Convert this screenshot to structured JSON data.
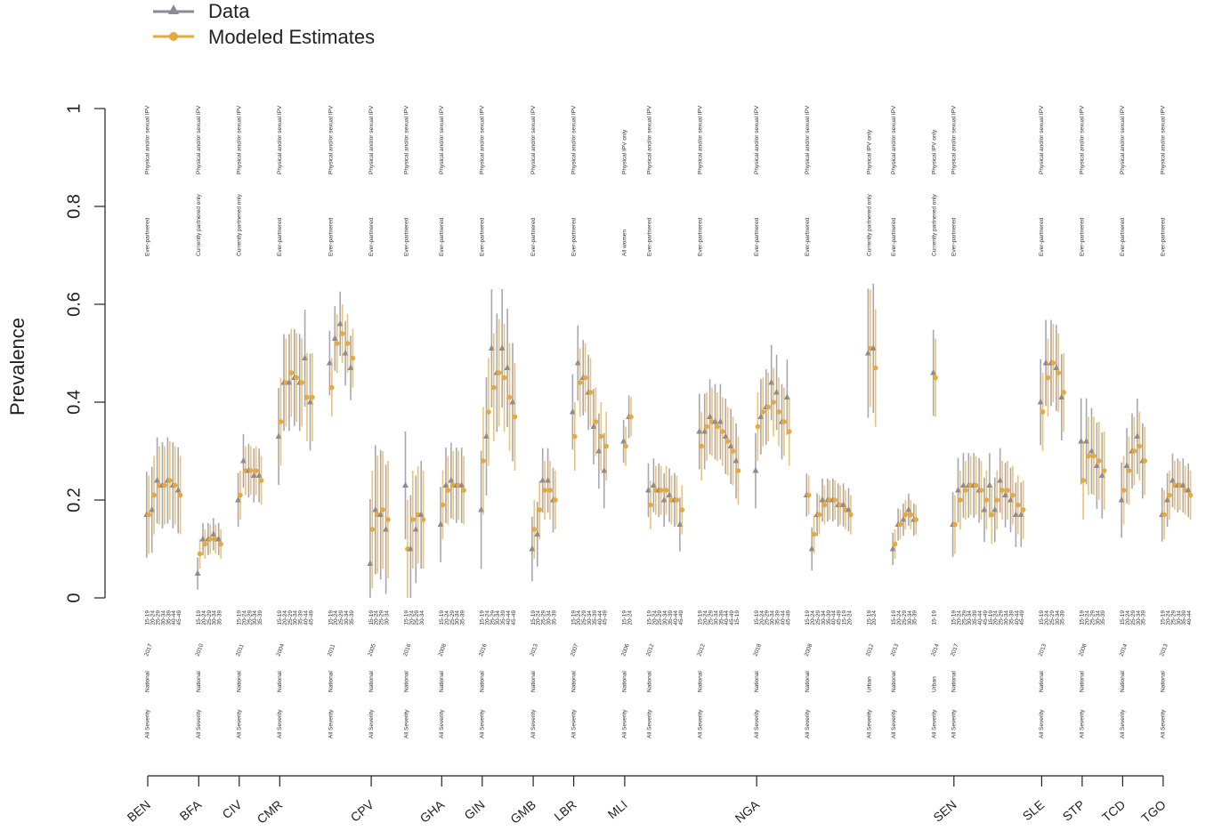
{
  "legend": {
    "items": [
      {
        "label": "Data",
        "color": "#8a8a98",
        "marker": "triangle"
      },
      {
        "label": "Modeled Estimates",
        "color": "#e8a83a",
        "marker": "circle"
      }
    ]
  },
  "colors": {
    "data": "#8a8a98",
    "estimate": "#e8a83a",
    "axis": "#222222"
  },
  "chart_data": {
    "type": "scatter",
    "ylabel": "Prevalence",
    "ylim": [
      0,
      1
    ],
    "y_ticks": [
      "0",
      "0.2",
      "0.4",
      "0.6",
      "0.8",
      "1"
    ],
    "age_groups": [
      "15-19",
      "20-24",
      "25-29",
      "30-34",
      "35-39",
      "40-44",
      "45-49"
    ],
    "surveys": [
      {
        "country": "BEN",
        "year": "2017",
        "sex": "National",
        "severity": "All Severity",
        "partner": "Ever-partnered",
        "ipv": "Physical and/or sexual IPV",
        "data": [
          0.17,
          0.18,
          0.24,
          0.23,
          0.24,
          0.23,
          0.22
        ],
        "est": [
          0.17,
          0.21,
          0.23,
          0.23,
          0.24,
          0.23,
          0.21
        ],
        "err": 0.08
      },
      {
        "country": "BFA",
        "year": "2010",
        "sex": "National",
        "severity": "All Severity",
        "partner": "Currently partnered only",
        "ipv": "Physical and/or sexual IPV",
        "data": [
          0.05,
          0.12,
          0.12,
          0.13,
          0.12
        ],
        "est": [
          0.09,
          0.11,
          0.12,
          0.12,
          0.11
        ],
        "err": 0.03
      },
      {
        "country": "CIV",
        "year": "2011",
        "sex": "National",
        "severity": "All Severity",
        "partner": "Currently partnered only",
        "ipv": "Physical and/or sexual IPV",
        "data": [
          0.2,
          0.28,
          0.26,
          0.25,
          0.25
        ],
        "est": [
          0.21,
          0.26,
          0.26,
          0.26,
          0.24
        ],
        "err": 0.05
      },
      {
        "country": "CMR",
        "year": "2004",
        "sex": "National",
        "severity": "All Severity",
        "partner": "Ever-partnered",
        "ipv": "Physical and/or sexual IPV",
        "data": [
          0.33,
          0.44,
          0.44,
          0.45,
          0.44,
          0.49,
          0.4
        ],
        "est": [
          0.36,
          0.44,
          0.46,
          0.45,
          0.44,
          0.41,
          0.41
        ],
        "err": 0.09
      },
      {
        "country": "CMR",
        "year": "2011",
        "sex": "National",
        "severity": "All Severity",
        "partner": "Ever-partnered",
        "ipv": "Physical and/or sexual IPV",
        "data": [
          0.48,
          0.53,
          0.56,
          0.5,
          0.47
        ],
        "est": [
          0.43,
          0.52,
          0.54,
          0.52,
          0.49
        ],
        "err": 0.06
      },
      {
        "country": "CPV",
        "year": "2005",
        "sex": "National",
        "severity": "All Severity",
        "partner": "Ever-partnered",
        "ipv": "Physical and/or sexual IPV",
        "data": [
          0.07,
          0.18,
          0.17,
          0.14
        ],
        "est": [
          0.14,
          0.17,
          0.18,
          0.16
        ],
        "err": 0.12
      },
      {
        "country": "CPV",
        "year": "2016",
        "sex": "National",
        "severity": "All Severity",
        "partner": "Ever-partnered",
        "ipv": "Physical and/or sexual IPV",
        "data": [
          0.23,
          0.1,
          0.14,
          0.17
        ],
        "est": [
          0.1,
          0.16,
          0.17,
          0.16
        ],
        "err": 0.1
      },
      {
        "country": "GHA",
        "year": "2008",
        "sex": "National",
        "severity": "All Severity",
        "partner": "Ever-partnered",
        "ipv": "Physical and/or sexual IPV",
        "data": [
          0.15,
          0.23,
          0.24,
          0.23,
          0.23
        ],
        "est": [
          0.19,
          0.22,
          0.23,
          0.23,
          0.22
        ],
        "err": 0.07
      },
      {
        "country": "GIN",
        "year": "2016",
        "sex": "National",
        "severity": "All Severity",
        "partner": "Ever-partnered",
        "ipv": "Physical and/or sexual IPV",
        "data": [
          0.18,
          0.33,
          0.51,
          0.46,
          0.51,
          0.47,
          0.4
        ],
        "est": [
          0.28,
          0.38,
          0.43,
          0.46,
          0.45,
          0.41,
          0.37
        ],
        "err": 0.11
      },
      {
        "country": "GMB",
        "year": "2013",
        "sex": "National",
        "severity": "All Severity",
        "partner": "Ever-partnered",
        "ipv": "Physical and/or sexual IPV",
        "data": [
          0.1,
          0.13,
          0.24,
          0.24,
          0.2
        ],
        "est": [
          0.14,
          0.18,
          0.22,
          0.22,
          0.2
        ],
        "err": 0.06
      },
      {
        "country": "LBR",
        "year": "2007",
        "sex": "National",
        "severity": "All Severity",
        "partner": "Ever-partnered",
        "ipv": "Physical and/or sexual IPV",
        "data": [
          0.38,
          0.48,
          0.45,
          0.42,
          0.35,
          0.3,
          0.26
        ],
        "est": [
          0.33,
          0.44,
          0.45,
          0.42,
          0.36,
          0.33,
          0.31
        ],
        "err": 0.07
      },
      {
        "country": "MLI",
        "year": "2006",
        "sex": "National",
        "severity": "All Severity",
        "partner": "All women",
        "ipv": "Physical IPV only",
        "data": [
          0.32,
          0.37
        ],
        "est": [
          0.31,
          0.37
        ],
        "err": 0.04
      },
      {
        "country": "MLI",
        "year": "2012",
        "sex": "National",
        "severity": "All Severity",
        "partner": "Ever-partnered",
        "ipv": "Physical and/or sexual IPV",
        "data": [
          0.22,
          0.23,
          0.22,
          0.2,
          0.21,
          0.2,
          0.15
        ],
        "est": [
          0.19,
          0.22,
          0.22,
          0.22,
          0.2,
          0.2,
          0.18
        ],
        "err": 0.05
      },
      {
        "country": "MLI",
        "year": "2012",
        "sex": "National",
        "severity": "All Severity",
        "partner": "Ever-partnered",
        "ipv": "Physical and/or sexual IPV",
        "data": [
          0.34,
          0.34,
          0.37,
          0.36,
          0.36,
          0.33,
          0.31,
          0.28
        ],
        "est": [
          0.31,
          0.35,
          0.36,
          0.35,
          0.34,
          0.32,
          0.3,
          0.26
        ],
        "err": 0.07
      },
      {
        "country": "NGA",
        "year": "2018",
        "sex": "National",
        "severity": "All Severity",
        "partner": "Ever-partnered",
        "ipv": "Physical and/or sexual IPV",
        "data": [
          0.26,
          0.37,
          0.39,
          0.44,
          0.42,
          0.36,
          0.41
        ],
        "est": [
          0.35,
          0.38,
          0.39,
          0.4,
          0.38,
          0.36,
          0.34
        ],
        "err": 0.07
      },
      {
        "country": "NGA",
        "year": "2008",
        "sex": "National",
        "severity": "All Severity",
        "partner": "Ever-partnered",
        "ipv": "Physical and/or sexual IPV",
        "data": [
          0.21,
          0.1,
          0.17,
          0.2,
          0.2,
          0.2,
          0.19,
          0.19,
          0.18
        ],
        "est": [
          0.21,
          0.13,
          0.17,
          0.19,
          0.2,
          0.2,
          0.19,
          0.18,
          0.17
        ],
        "err": 0.04
      },
      {
        "country": "NGA",
        "year": "2012",
        "sex": "Urban",
        "severity": "All Severity",
        "partner": "Currently partnered only",
        "ipv": "Physical IPV only",
        "data": [
          0.5,
          0.51
        ],
        "est": [
          0.51,
          0.47
        ],
        "err": 0.12
      },
      {
        "country": "NGA",
        "year": "2013",
        "sex": "National",
        "severity": "All Severity",
        "partner": "Ever-partnered",
        "ipv": "Physical and/or sexual IPV",
        "data": [
          0.1,
          0.15,
          0.16,
          0.18,
          0.16
        ],
        "est": [
          0.11,
          0.15,
          0.17,
          0.17,
          0.16
        ],
        "err": 0.03
      },
      {
        "country": "NGA",
        "year": "2014",
        "sex": "Urban",
        "severity": "All Severity",
        "partner": "Currently partnered only",
        "ipv": "Physical IPV only",
        "data": [
          0.46
        ],
        "est": [
          0.45
        ],
        "err": 0.08
      },
      {
        "country": "SEN",
        "year": "2017",
        "sex": "National",
        "severity": "All Severity",
        "partner": "Ever-partnered",
        "ipv": "Physical and/or sexual IPV",
        "data": [
          0.15,
          0.22,
          0.23,
          0.23,
          0.23,
          0.22,
          0.18,
          0.23,
          0.18,
          0.24,
          0.21,
          0.2,
          0.17,
          0.17
        ],
        "est": [
          0.15,
          0.2,
          0.22,
          0.23,
          0.23,
          0.22,
          0.2,
          0.17,
          0.2,
          0.22,
          0.22,
          0.21,
          0.19,
          0.18
        ],
        "err": 0.06
      },
      {
        "country": "SLE",
        "year": "2013",
        "sex": "National",
        "severity": "All Severity",
        "partner": "Ever-partnered",
        "ipv": "Physical and/or sexual IPV",
        "data": [
          0.4,
          0.48,
          0.48,
          0.47,
          0.41
        ],
        "est": [
          0.38,
          0.45,
          0.48,
          0.46,
          0.42
        ],
        "err": 0.08
      },
      {
        "country": "STP",
        "year": "2008",
        "sex": "National",
        "severity": "All Severity",
        "partner": "Ever-partnered",
        "ipv": "Physical and/or sexual IPV",
        "data": [
          0.32,
          0.32,
          0.3,
          0.27,
          0.25
        ],
        "est": [
          0.24,
          0.29,
          0.29,
          0.28,
          0.26
        ],
        "err": 0.08
      },
      {
        "country": "TCD",
        "year": "2014",
        "sex": "National",
        "severity": "All Severity",
        "partner": "Ever-partnered",
        "ipv": "Physical and/or sexual IPV",
        "data": [
          0.2,
          0.27,
          0.3,
          0.33,
          0.28
        ],
        "est": [
          0.22,
          0.26,
          0.3,
          0.31,
          0.28
        ],
        "err": 0.07
      },
      {
        "country": "TGO",
        "year": "2013",
        "sex": "National",
        "severity": "All Severity",
        "partner": "Ever-partnered",
        "ipv": "Physical and/or sexual IPV",
        "data": [
          0.17,
          0.2,
          0.24,
          0.23,
          0.23,
          0.22
        ],
        "est": [
          0.17,
          0.21,
          0.23,
          0.23,
          0.22,
          0.21
        ],
        "err": 0.05
      }
    ],
    "countries": [
      "BEN",
      "BFA",
      "CIV",
      "CMR",
      "CPV",
      "GHA",
      "GIN",
      "GMB",
      "LBR",
      "MLI",
      "NGA",
      "SEN",
      "SLE",
      "STP",
      "TCD",
      "TGO"
    ],
    "grid": false,
    "legend_position": "top-left"
  }
}
